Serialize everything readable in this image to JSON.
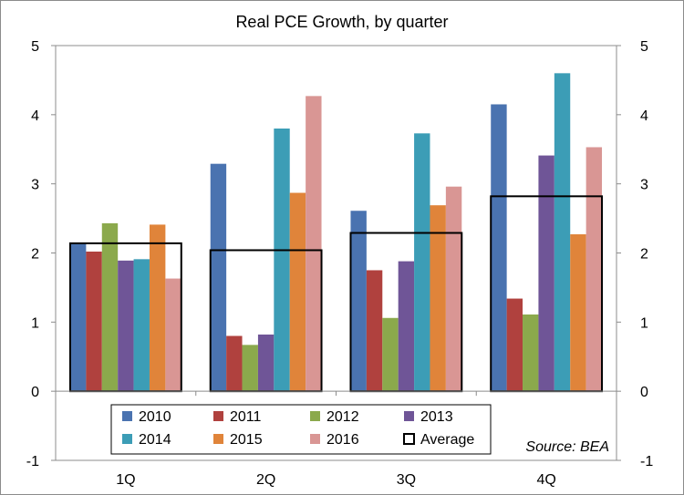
{
  "chart_data": {
    "type": "bar",
    "title": "Real PCE Growth, by quarter",
    "categories": [
      "1Q",
      "2Q",
      "3Q",
      "4Q"
    ],
    "series": [
      {
        "name": "2010",
        "color": "#4a73b0",
        "values": [
          2.15,
          3.29,
          2.61,
          4.15
        ]
      },
      {
        "name": "2011",
        "color": "#b0413e",
        "values": [
          2.02,
          0.8,
          1.75,
          1.34
        ]
      },
      {
        "name": "2012",
        "color": "#8ba94c",
        "values": [
          2.43,
          0.67,
          1.06,
          1.11
        ]
      },
      {
        "name": "2013",
        "color": "#6f5597",
        "values": [
          1.89,
          0.82,
          1.88,
          3.41
        ]
      },
      {
        "name": "2014",
        "color": "#3c9db6",
        "values": [
          1.91,
          3.8,
          3.73,
          4.6
        ]
      },
      {
        "name": "2015",
        "color": "#e0843a",
        "values": [
          2.41,
          2.87,
          2.69,
          2.27
        ]
      },
      {
        "name": "2016",
        "color": "#d99694",
        "values": [
          1.63,
          4.27,
          2.96,
          3.53
        ]
      }
    ],
    "average": {
      "name": "Average",
      "values": [
        2.14,
        2.04,
        2.29,
        2.82
      ]
    },
    "ylim": [
      -1,
      5
    ],
    "yticks": [
      -1,
      0,
      1,
      2,
      3,
      4,
      5
    ],
    "secondary_axis": true,
    "grid": false,
    "legend_position": "bottom-inside",
    "annotation": "Source: BEA"
  }
}
